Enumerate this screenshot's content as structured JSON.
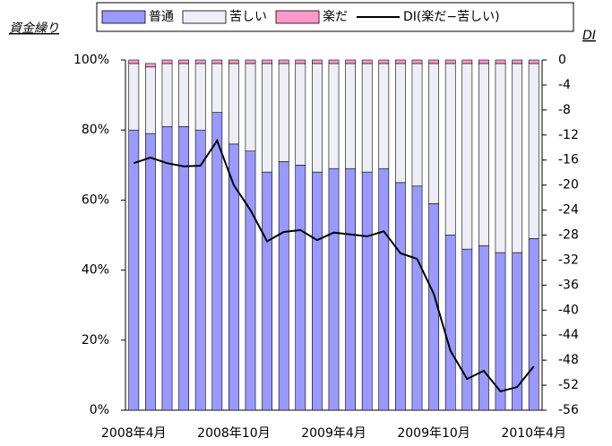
{
  "chart_data": {
    "type": "stacked_bar_line",
    "title": "資金繰り",
    "y2_title": "DI",
    "categories": [
      "2008年4月",
      null,
      null,
      null,
      null,
      null,
      "2008年10月",
      null,
      null,
      null,
      null,
      null,
      "2009年4月",
      null,
      null,
      null,
      null,
      null,
      "2009年10月",
      null,
      null,
      null,
      null,
      null,
      "2010年4月"
    ],
    "series": [
      {
        "name": "普通",
        "color": "#9999ff",
        "values": [
          80,
          79,
          81,
          81,
          80,
          85,
          76,
          74,
          68,
          71,
          70,
          68,
          69,
          69,
          68,
          69,
          65,
          64,
          59,
          50,
          46,
          47,
          45,
          45,
          49
        ]
      },
      {
        "name": "苦しい",
        "color": "#eeeef6",
        "values": [
          19,
          19,
          18,
          18,
          19,
          14,
          23,
          25,
          31,
          28,
          29,
          31,
          30,
          30,
          31,
          30,
          34,
          35,
          40,
          49,
          53,
          52,
          54,
          54,
          50
        ]
      },
      {
        "name": "楽だ",
        "color": "#ff99cc",
        "values": [
          1,
          1,
          1,
          1,
          1,
          1,
          1,
          1,
          1,
          1,
          1,
          1,
          1,
          1,
          1,
          1,
          1,
          1,
          1,
          1,
          1,
          1,
          1,
          1,
          1
        ]
      },
      {
        "name": "DI(楽だ−苦しい)",
        "color": "#000000",
        "axis": "y2",
        "values": [
          -16.5,
          -15.6,
          -16.5,
          -17,
          -16.9,
          -12.9,
          -20,
          -24,
          -29,
          -27.5,
          -27.2,
          -28.8,
          -27.6,
          -27.9,
          -28.2,
          -27.4,
          -30.9,
          -31.8,
          -37.4,
          -46.5,
          -51,
          -49.7,
          -53,
          -52.3,
          -49
        ]
      }
    ],
    "ylim": [
      0,
      100
    ],
    "yticks": [
      {
        "value": 0,
        "label": "0%"
      },
      {
        "value": 20,
        "label": "20%"
      },
      {
        "value": 40,
        "label": "40%"
      },
      {
        "value": 60,
        "label": "60%"
      },
      {
        "value": 80,
        "label": "80%"
      },
      {
        "value": 100,
        "label": "100%"
      }
    ],
    "y2lim": [
      -56,
      0
    ],
    "y2ticks": [
      0,
      -4,
      -8,
      -12,
      -16,
      -20,
      -24,
      -28,
      -32,
      -36,
      -40,
      -44,
      -48,
      -52,
      -56
    ]
  }
}
